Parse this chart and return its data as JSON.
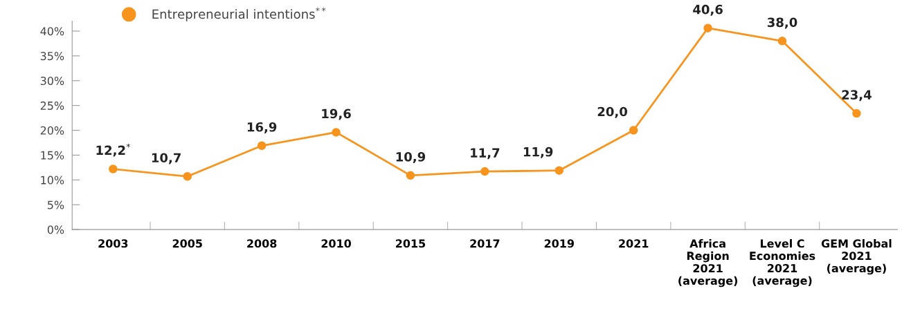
{
  "chart_data": {
    "type": "line",
    "categories": [
      "2003",
      "2005",
      "2008",
      "2010",
      "2015",
      "2017",
      "2019",
      "2021",
      "Africa\nRegion\n2021\n(average)",
      "Level C\nEconomies\n2021\n(average)",
      "GEM Global\n2021\n(average)"
    ],
    "series": [
      {
        "name": "Entrepreneurial intentions$^{**}$",
        "color": "#f7941d",
        "values": [
          12.2,
          10.7,
          16.9,
          19.6,
          10.9,
          11.7,
          11.9,
          20.0,
          40.6,
          38.0,
          23.4
        ],
        "value_labels": [
          "12,2$^{*}$",
          "10,7",
          "16,9",
          "19,6",
          "10,9",
          "11,7",
          "11,9",
          "20,0",
          "40,6",
          "38,0",
          "23,4"
        ]
      }
    ],
    "ylim": [
      0,
      42
    ],
    "yticks": [
      {
        "value": 0,
        "label": "0%"
      },
      {
        "value": 5,
        "label": "5%"
      },
      {
        "value": 10,
        "label": "10%"
      },
      {
        "value": 15,
        "label": "15%"
      },
      {
        "value": 20,
        "label": "20%"
      },
      {
        "value": 25,
        "label": "25%"
      },
      {
        "value": 30,
        "label": "30%"
      },
      {
        "value": 35,
        "label": "35%"
      },
      {
        "value": 40,
        "label": "40%"
      }
    ],
    "grid": false,
    "legend": "top left",
    "marker": "circle",
    "line_style": "solid"
  }
}
